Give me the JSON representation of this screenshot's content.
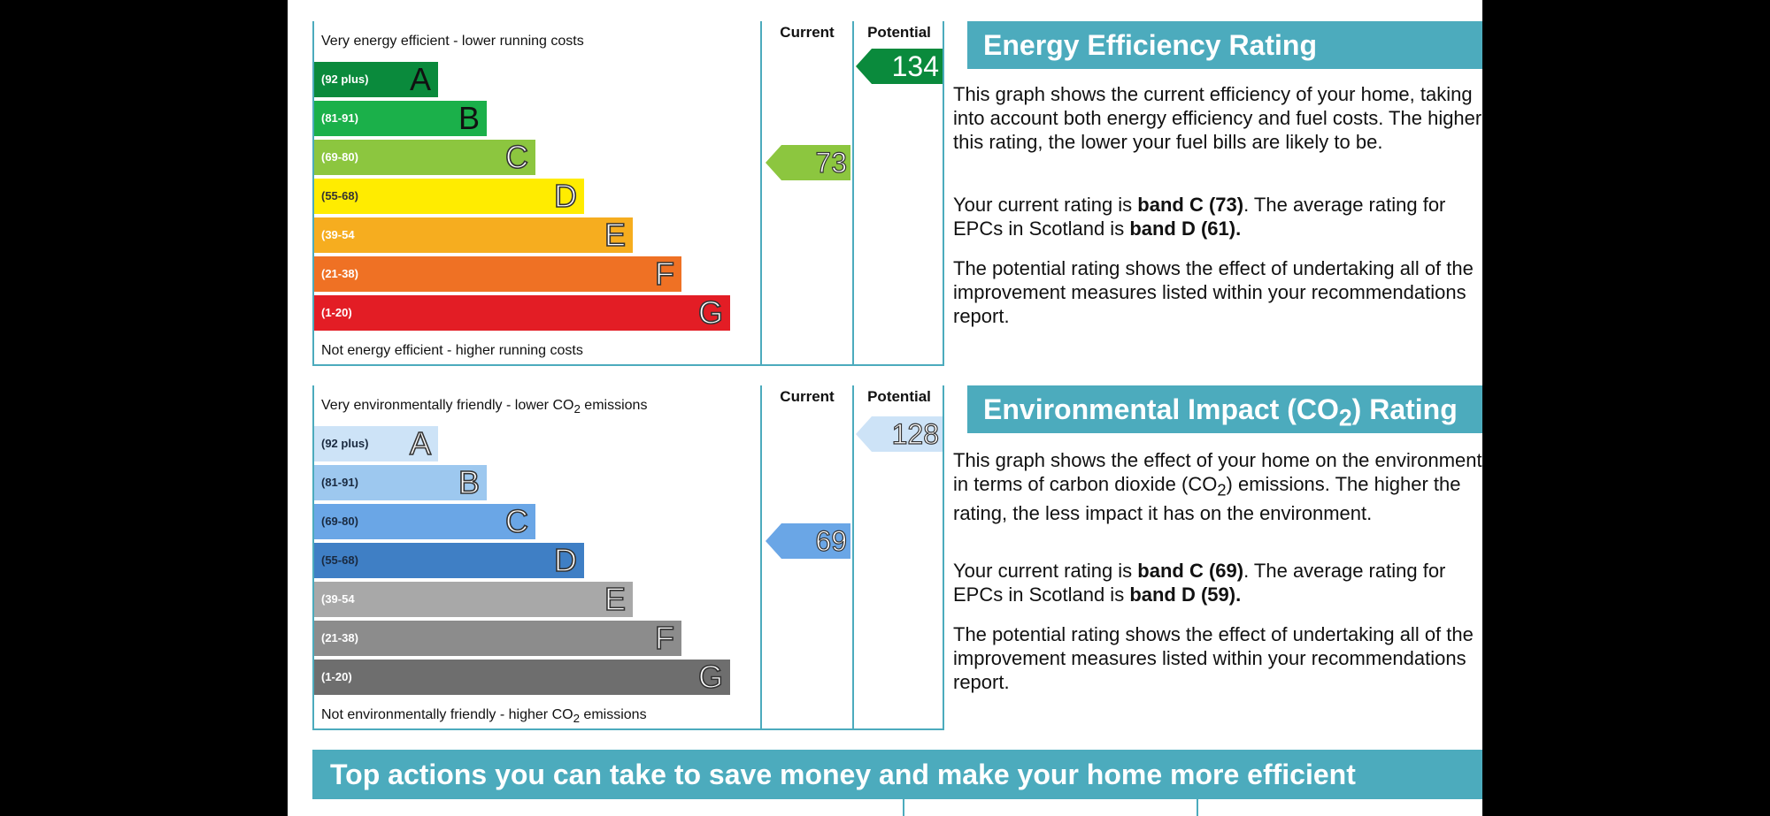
{
  "energy": {
    "top_caption": "Very energy efficient - lower running costs",
    "bottom_caption": "Not energy efficient - higher running costs",
    "current_header": "Current",
    "potential_header": "Potential",
    "current_value": "73",
    "potential_value": "134",
    "bands": [
      {
        "range": "(92 plus)",
        "letter": "A",
        "color": "#0a8a3c"
      },
      {
        "range": "(81-91)",
        "letter": "B",
        "color": "#1bb04a"
      },
      {
        "range": "(69-80)",
        "letter": "C",
        "color": "#8cc63f"
      },
      {
        "range": "(55-68)",
        "letter": "D",
        "color": "#ffec00"
      },
      {
        "range": "(39-54",
        "letter": "E",
        "color": "#f6ad1f"
      },
      {
        "range": "(21-38)",
        "letter": "F",
        "color": "#ef7124"
      },
      {
        "range": "(1-20)",
        "letter": "G",
        "color": "#e31d25"
      }
    ],
    "current_color": "#8cc63f",
    "potential_color": "#0a8a3c",
    "title": "Energy Efficiency Rating",
    "para1": "This graph shows the current efficiency of your home, taking into account both energy efficiency and fuel costs. The higher this rating, the lower your fuel bills are likely to be.",
    "para2_pre": "Your current rating is ",
    "para2_band": "band C (73)",
    "para2_mid": ". The average rating for EPCs in Scotland is ",
    "para2_avg": "band D (61).",
    "para3": "The potential rating shows the effect of undertaking all of the improvement measures listed within your recommendations report."
  },
  "environment": {
    "top_caption_pre": "Very environmentally friendly - lower CO",
    "top_caption_sub": "2",
    "top_caption_post": " emissions",
    "bottom_caption_pre": "Not environmentally friendly - higher CO",
    "bottom_caption_sub": "2",
    "bottom_caption_post": " emissions",
    "current_header": "Current",
    "potential_header": "Potential",
    "current_value": "69",
    "potential_value": "128",
    "bands": [
      {
        "range": "(92 plus)",
        "letter": "A",
        "color": "#cde3f7"
      },
      {
        "range": "(81-91)",
        "letter": "B",
        "color": "#9dc8ef"
      },
      {
        "range": "(69-80)",
        "letter": "C",
        "color": "#6aa6e6"
      },
      {
        "range": "(55-68)",
        "letter": "D",
        "color": "#3f7fc5"
      },
      {
        "range": "(39-54",
        "letter": "E",
        "color": "#a8a8a8"
      },
      {
        "range": "(21-38)",
        "letter": "F",
        "color": "#8c8c8c"
      },
      {
        "range": "(1-20)",
        "letter": "G",
        "color": "#6e6e6e"
      }
    ],
    "current_color": "#6aa6e6",
    "potential_color": "#cde3f7",
    "title_pre": "Environmental Impact (CO",
    "title_sub": "2",
    "title_post": ") Rating",
    "para1_pre": "This graph shows the effect of your home on the environment in terms of carbon dioxide (CO",
    "para1_sub": "2",
    "para1_post": ") emissions. The higher the rating, the less impact it has on the environment.",
    "para2_pre": "Your current rating is ",
    "para2_band": "band C (69)",
    "para2_mid": ". The average rating for EPCs in Scotland is ",
    "para2_avg": "band D (59).",
    "para3": "The potential rating shows the effect of undertaking all of the improvement measures listed within your recommendations report."
  },
  "footer": {
    "banner": "Top actions you can take to save money and make your home more efficient"
  }
}
